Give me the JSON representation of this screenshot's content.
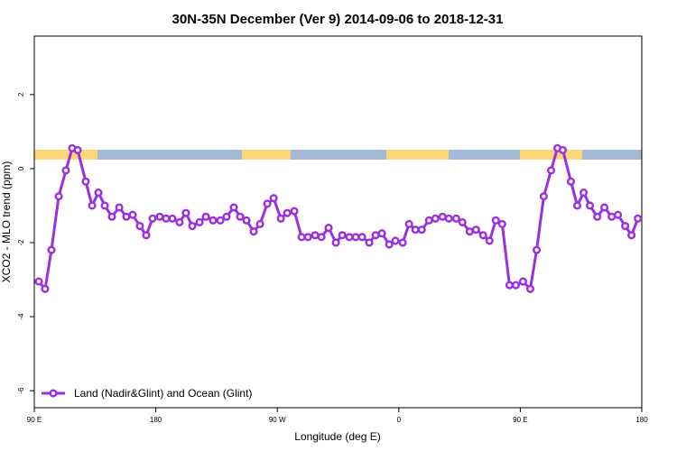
{
  "chart_data": {
    "type": "line",
    "title": "30N-35N December (Ver 9)   2014-09-06 to 2018-12-31",
    "x_label": "Longitude (deg E)",
    "y_label": "XCO2 - MLO trend (ppm)",
    "xlim": [
      90,
      540
    ],
    "ylim": [
      -6.46,
      3.58
    ],
    "xticks": [
      {
        "value": 90,
        "label": "90 E"
      },
      180,
      {
        "value": 270,
        "label": "90 W"
      },
      {
        "value": 360,
        "label": "0"
      },
      {
        "value": 450,
        "label": "90 E"
      },
      {
        "value": 540,
        "label": "180"
      }
    ],
    "yticks": [
      2,
      0,
      -2,
      -4,
      -6
    ],
    "legend": "bottom-left",
    "x": [
      93.3,
      98,
      102.7,
      108.1,
      113.4,
      118.1,
      122.1,
      128.1,
      132.8,
      137.5,
      142.2,
      147.5,
      152.9,
      158.2,
      162.9,
      168.2,
      172.9,
      177.6,
      182.9,
      187.6,
      192.3,
      197.6,
      202.3,
      207,
      212.4,
      217.1,
      222.4,
      227.8,
      232.4,
      237.8,
      242.5,
      247.2,
      252.5,
      257.2,
      262.6,
      267.3,
      272.6,
      277.3,
      282.6,
      288,
      292.7,
      298,
      302.7,
      308,
      313.4,
      318.1,
      323.4,
      328.1,
      332.8,
      338.1,
      342.8,
      347.5,
      352.9,
      357.5,
      362.9,
      367.6,
      372.3,
      377,
      382.4,
      387.1,
      392.4,
      397.1,
      402.5,
      407.1,
      412.5,
      417.2,
      422.5,
      427.2,
      431.9,
      436.6,
      442,
      446.7,
      452,
      457.4,
      462.1,
      467.4,
      472.8,
      477.5,
      481.5,
      487.5,
      492.2,
      496.9,
      501.6,
      507,
      512.3,
      517.7,
      522.3,
      527.7,
      532.4,
      537.1
    ],
    "series": [
      {
        "name": "Land (Nadir&Glint) and Ocean (Glint)",
        "color": "#9b30e0",
        "values": [
          -3.05,
          -3.25,
          -2.2,
          -0.75,
          -0.05,
          0.55,
          0.5,
          -0.35,
          -1.0,
          -0.65,
          -1.0,
          -1.3,
          -1.05,
          -1.3,
          -1.25,
          -1.55,
          -1.8,
          -1.35,
          -1.3,
          -1.35,
          -1.35,
          -1.45,
          -1.2,
          -1.55,
          -1.45,
          -1.3,
          -1.4,
          -1.4,
          -1.3,
          -1.05,
          -1.3,
          -1.4,
          -1.7,
          -1.5,
          -0.95,
          -0.8,
          -1.35,
          -1.2,
          -1.15,
          -1.85,
          -1.85,
          -1.8,
          -1.85,
          -1.6,
          -2.0,
          -1.8,
          -1.85,
          -1.85,
          -1.85,
          -2.0,
          -1.8,
          -1.75,
          -2.05,
          -1.95,
          -2.0,
          -1.5,
          -1.65,
          -1.65,
          -1.4,
          -1.35,
          -1.3,
          -1.35,
          -1.35,
          -1.45,
          -1.7,
          -1.65,
          -1.8,
          -1.95,
          -1.4,
          -1.5,
          -3.15,
          -3.15,
          -3.05,
          -3.25,
          -2.2,
          -0.75,
          -0.05,
          0.55,
          0.5,
          -0.35,
          -1.0,
          -0.65,
          -1.0,
          -1.3,
          -1.05,
          -1.3,
          -1.25,
          -1.55,
          -1.8,
          -1.35
        ]
      }
    ]
  }
}
